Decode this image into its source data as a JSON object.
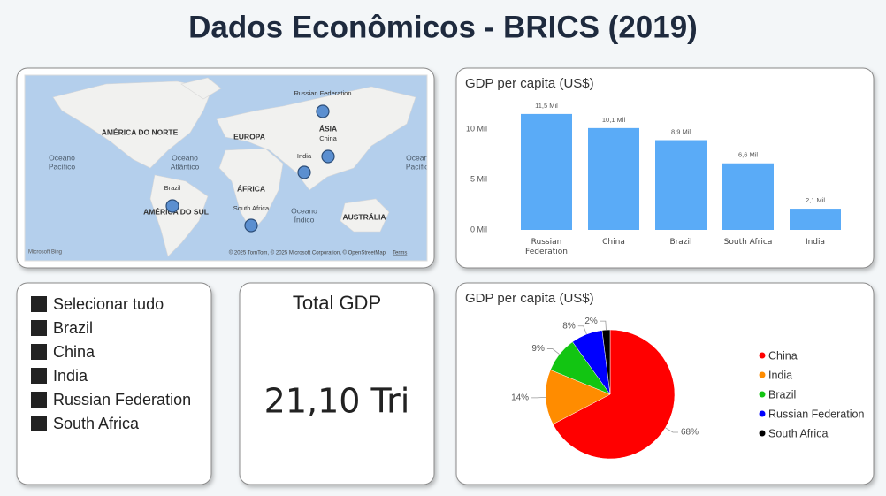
{
  "title": "Dados Econômicos - BRICS (2019)",
  "map": {
    "labels": [
      [
        "AMÉRICA DO NORTE"
      ],
      [
        "EUROPA"
      ],
      [
        "ÁSIA"
      ],
      [
        "ÁFRICA"
      ],
      [
        "AMÉRICA DO SUL"
      ],
      [
        "AUSTRÁLIA"
      ],
      [
        "Oceano",
        "Pacífico"
      ],
      [
        "Oceano",
        "Atlântico"
      ],
      [
        "Oceano",
        "Índico"
      ],
      [
        "Oceano",
        "Pacífico"
      ],
      [
        "AUSTRÁLIA"
      ]
    ],
    "points": [
      "Russian Federation",
      "China",
      "India",
      "Brazil",
      "South Africa"
    ],
    "logo": "Microsoft Bing",
    "attribution": "© 2025 TomTom, © 2025 Microsoft Corporation, © OpenStreetMap",
    "terms": "Terms"
  },
  "slicer": {
    "items": [
      "Selecionar tudo",
      "Brazil",
      "China",
      "India",
      "Russian Federation",
      "South Africa"
    ]
  },
  "card": {
    "title": "Total GDP",
    "value": "21,10 Tri"
  },
  "chart_data": [
    {
      "type": "bar",
      "title": "GDP per capita (US$)",
      "categories": [
        "Russian Federation",
        "China",
        "Brazil",
        "South Africa",
        "India"
      ],
      "values": [
        11.5,
        10.1,
        8.9,
        6.6,
        2.1
      ],
      "value_labels": [
        "11,5 Mil",
        "10,1 Mil",
        "8,9 Mil",
        "6,6 Mil",
        "2,1 Mil"
      ],
      "color": "#5aabf7",
      "ylim": [
        0,
        12
      ],
      "yticks": [
        {
          "value": 0,
          "label": "0 Mil"
        },
        {
          "value": 5,
          "label": "5 Mil"
        },
        {
          "value": 10,
          "label": "10 Mil"
        }
      ]
    },
    {
      "type": "pie",
      "title": "GDP per capita (US$)",
      "categories": [
        "China",
        "India",
        "Brazil",
        "Russian Federation",
        "South Africa"
      ],
      "values": [
        68,
        14,
        9,
        8,
        2
      ],
      "value_labels": [
        "68%",
        "14%",
        "9%",
        "8%",
        "2%"
      ],
      "colors": [
        "#ff0000",
        "#ff8c00",
        "#12c512",
        "#0000ff",
        "#000000"
      ]
    }
  ]
}
